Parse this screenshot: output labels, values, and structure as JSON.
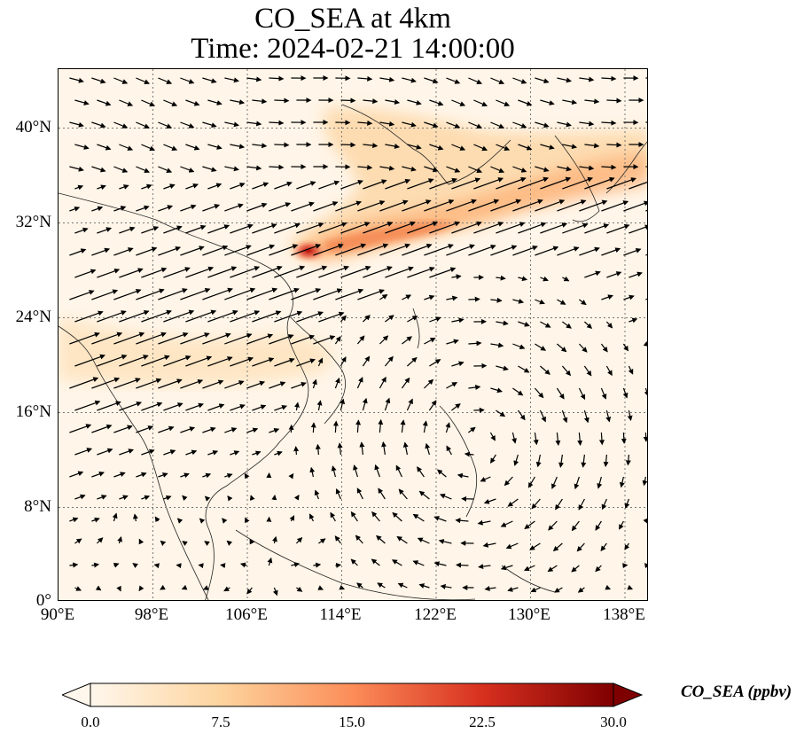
{
  "title": {
    "line1": "CO_SEA at 4km",
    "line2": "Time: 2024-02-21 14:00:00"
  },
  "map": {
    "projection": "PlateCarree",
    "lon_range": [
      90,
      140
    ],
    "lat_range": [
      0,
      45
    ],
    "gridlines": true,
    "coastlines": true,
    "lat_ticks": [
      "40°N",
      "32°N",
      "24°N",
      "16°N",
      "8°N",
      "0°"
    ],
    "lon_ticks": [
      "90°E",
      "98°E",
      "106°E",
      "114°E",
      "122°E",
      "130°E",
      "138°E"
    ],
    "field": "CO_SEA",
    "wind_vectors": true,
    "plume_peak_location": "near 110°E, 30°N",
    "plume_band": "110°E 30°N to 140°E 38°N"
  },
  "colorbar": {
    "label": "CO_SEA (ppbv)",
    "colormap": "OrRd",
    "ticks": [
      "0.0",
      "7.5",
      "15.0",
      "22.5",
      "30.0"
    ],
    "vmin": 0.0,
    "vmax": 30.0,
    "extend": "both",
    "colors": [
      "#fff7ec",
      "#fdd49e",
      "#fc8d59",
      "#d7301f",
      "#7f0000"
    ]
  }
}
